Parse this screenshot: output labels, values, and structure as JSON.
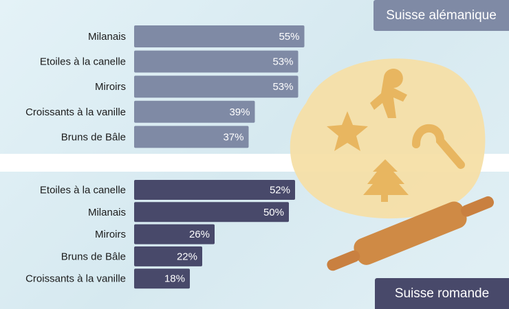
{
  "chart_data": [
    {
      "type": "bar",
      "orientation": "horizontal",
      "title": "Suisse alémanique",
      "categories": [
        "Milanais",
        "Etoiles à la canelle",
        "Miroirs",
        "Croissants à la vanille",
        "Bruns de Bâle"
      ],
      "values": [
        55,
        53,
        53,
        39,
        37
      ],
      "labels": [
        "55%",
        "53%",
        "53%",
        "39%",
        "37%"
      ],
      "color": "#7f8aa5",
      "xlim": [
        0,
        100
      ],
      "grid": false
    },
    {
      "type": "bar",
      "orientation": "horizontal",
      "title": "Suisse romande",
      "categories": [
        "Etoiles à la canelle",
        "Milanais",
        "Miroirs",
        "Bruns de Bâle",
        "Croissants à la vanille"
      ],
      "values": [
        52,
        50,
        26,
        22,
        18
      ],
      "labels": [
        "52%",
        "50%",
        "26%",
        "22%",
        "18%"
      ],
      "color": "#48496a",
      "xlim": [
        0,
        100
      ],
      "grid": false
    }
  ]
}
